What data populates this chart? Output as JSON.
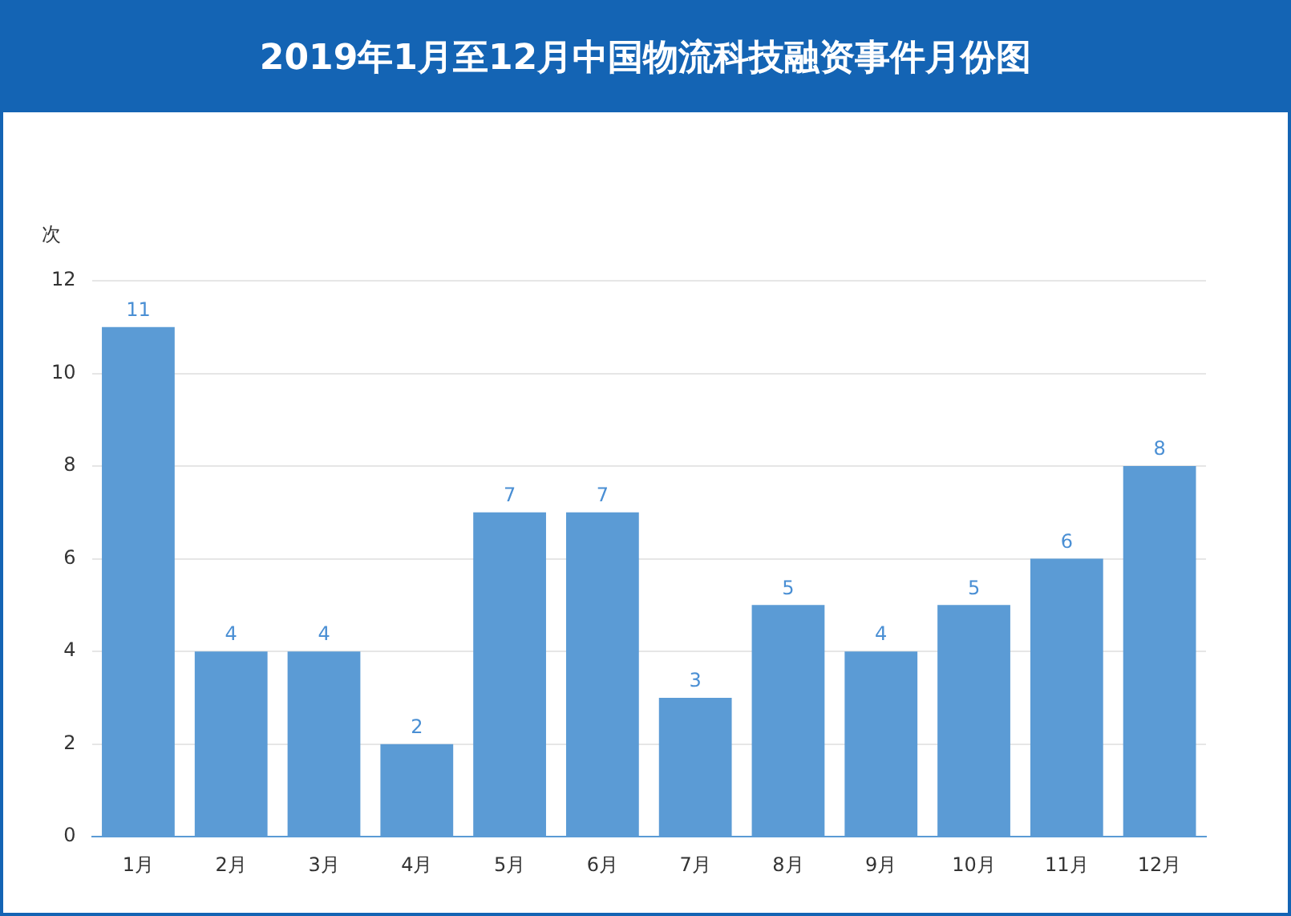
{
  "chart_data": {
    "type": "bar",
    "title": "2019年1月至12月中国物流科技融资事件月份图",
    "ylabel": "次",
    "categories": [
      "1月",
      "2月",
      "3月",
      "4月",
      "5月",
      "6月",
      "7月",
      "8月",
      "9月",
      "10月",
      "11月",
      "12月"
    ],
    "values": [
      11,
      4,
      4,
      2,
      7,
      7,
      3,
      5,
      4,
      5,
      6,
      8
    ],
    "color": "#5b9bd5",
    "ylim": [
      0,
      12
    ],
    "yticks": [
      0,
      2,
      4,
      6,
      8,
      10,
      12
    ],
    "grid": "y",
    "legend": false,
    "data_labels": true
  }
}
